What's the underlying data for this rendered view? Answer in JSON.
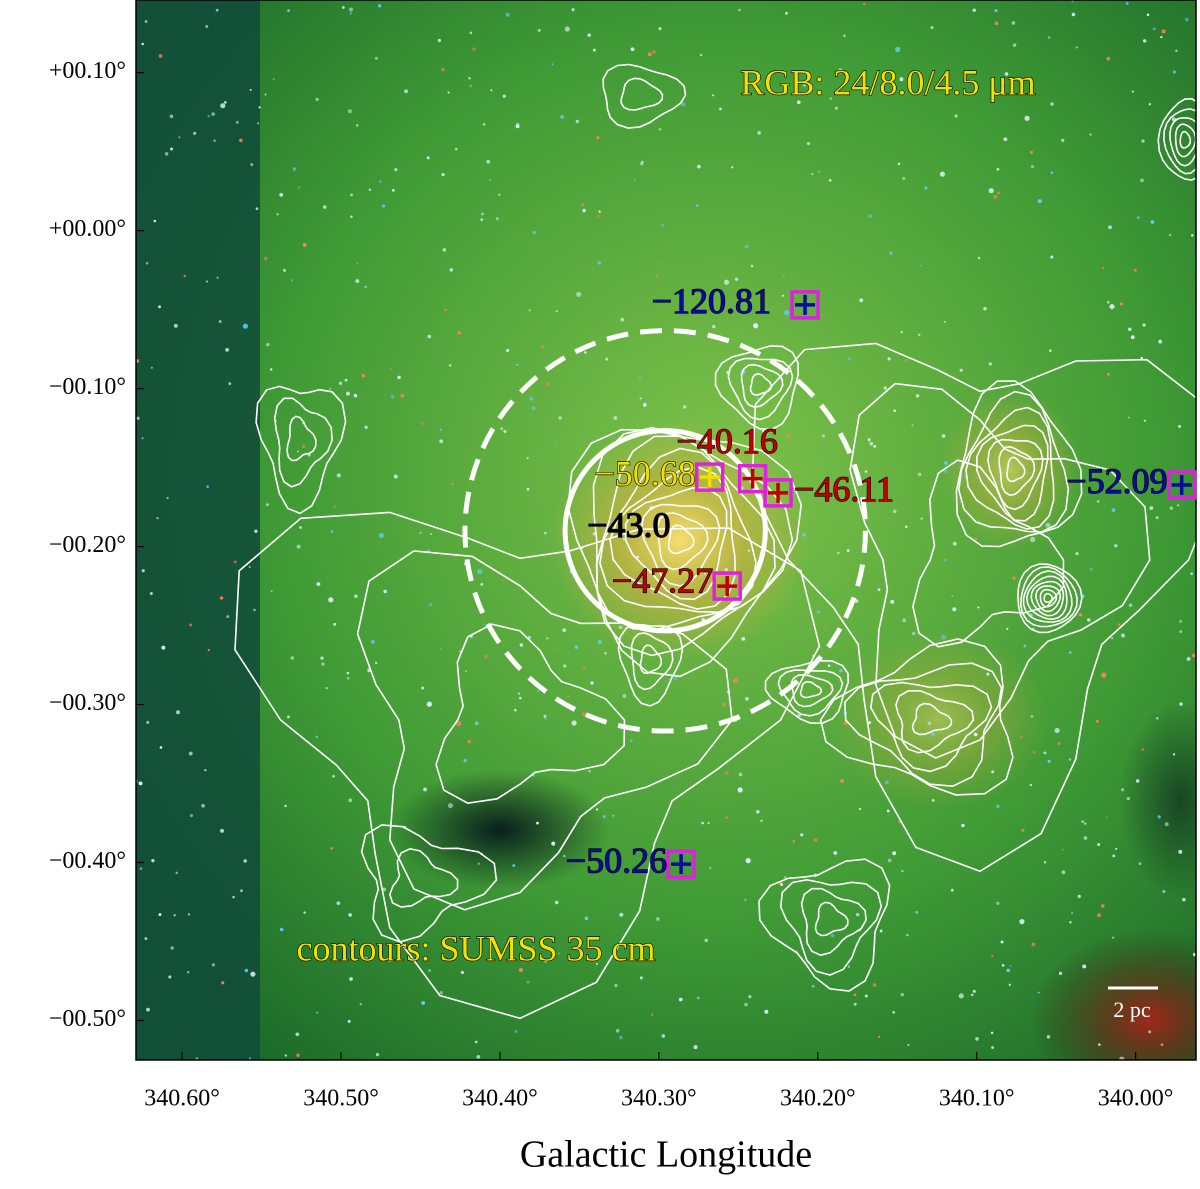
{
  "chart_data": {
    "type": "scatter",
    "x_label": "Galactic Longitude",
    "xlim": [
      340.629,
      339.962
    ],
    "ylim": [
      -0.525,
      0.146
    ],
    "xticks": [
      {
        "value": 340.6,
        "label": "340.60°"
      },
      {
        "value": 340.5,
        "label": "340.50°"
      },
      {
        "value": 340.4,
        "label": "340.40°"
      },
      {
        "value": 340.3,
        "label": "340.30°"
      },
      {
        "value": 340.2,
        "label": "340.20°"
      },
      {
        "value": 340.1,
        "label": "340.10°"
      },
      {
        "value": 340.0,
        "label": "340.00°"
      }
    ],
    "yticks": [
      {
        "value": 0.1,
        "label": "+00.10°"
      },
      {
        "value": 0.0,
        "label": "+00.00°"
      },
      {
        "value": -0.1,
        "label": "−00.10°"
      },
      {
        "value": -0.2,
        "label": "−00.20°"
      },
      {
        "value": -0.3,
        "label": "−00.30°"
      },
      {
        "value": -0.4,
        "label": "−00.40°"
      },
      {
        "value": -0.5,
        "label": "−00.50°"
      }
    ],
    "annotations": [
      "RGB: 24/8.0/4.5 μm",
      "contours: SUMSS 35 cm"
    ],
    "scale_bar": "2 pc",
    "points": [
      {
        "label": "−120.81",
        "lon": 340.208,
        "lat": -0.047,
        "color": "#0a0aa0"
      },
      {
        "label": "−50.68",
        "lon": 340.268,
        "lat": -0.156,
        "color": "#f2e000"
      },
      {
        "label": "−40.16",
        "lon": 340.241,
        "lat": -0.157,
        "color": "#c00000"
      },
      {
        "label": "−46.11",
        "lon": 340.225,
        "lat": -0.166,
        "color": "#c00000"
      },
      {
        "label": "−52.09",
        "lon": 339.971,
        "lat": -0.161,
        "color": "#0a0aa0"
      },
      {
        "label": "−47.27",
        "lon": 340.257,
        "lat": -0.225,
        "color": "#c00000"
      },
      {
        "label": "−50.26",
        "lon": 340.286,
        "lat": -0.401,
        "color": "#0a0aa0"
      }
    ],
    "circles": [
      {
        "label": "−43.0",
        "lon": 340.296,
        "lat": -0.19,
        "radius": 0.063,
        "style": "solid"
      },
      {
        "lon": 340.296,
        "lat": -0.19,
        "radius": 0.126,
        "style": "dashed"
      }
    ]
  }
}
